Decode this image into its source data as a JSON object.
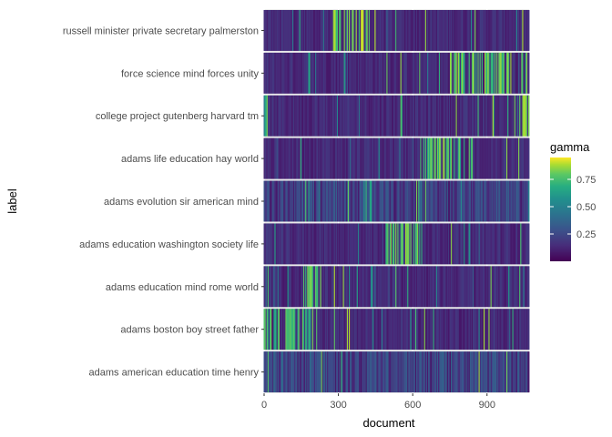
{
  "chart_data": {
    "type": "heatmap",
    "xlabel": "document",
    "ylabel": "label",
    "xlim": [
      0,
      1070
    ],
    "x_ticks": [
      "0",
      "300",
      "600",
      "900"
    ],
    "x_tick_values": [
      0,
      300,
      600,
      900
    ],
    "y_categories": [
      "russell minister private secretary palmerston",
      "force science mind forces unity",
      "college project gutenberg harvard tm",
      "adams life education hay world",
      "adams evolution sir american mind",
      "adams education washington society life",
      "adams education mind rome world",
      "adams boston boy street father",
      "adams american education time henry"
    ],
    "n_documents": 1070,
    "grid": true,
    "background": "#ebebeb",
    "colorscale": "viridis",
    "legend": {
      "title": "gamma",
      "position": "right",
      "ticks": [
        "0.75",
        "0.50",
        "0.25"
      ],
      "tick_values": [
        0.75,
        0.5,
        0.25
      ],
      "range": [
        0.0,
        0.95
      ]
    },
    "hot_ranges": [
      {
        "row": 0,
        "from": 280,
        "to": 440,
        "level": 0.95
      },
      {
        "row": 1,
        "from": 740,
        "to": 1000,
        "level": 0.9
      },
      {
        "row": 2,
        "from": 0,
        "to": 15,
        "level": 0.8
      },
      {
        "row": 2,
        "from": 1010,
        "to": 1070,
        "level": 0.95
      },
      {
        "row": 3,
        "from": 630,
        "to": 860,
        "level": 0.8
      },
      {
        "row": 4,
        "from": 0,
        "to": 1070,
        "level": 0.3
      },
      {
        "row": 5,
        "from": 490,
        "to": 640,
        "level": 0.85
      },
      {
        "row": 6,
        "from": 160,
        "to": 230,
        "level": 0.85
      },
      {
        "row": 7,
        "from": 0,
        "to": 200,
        "level": 0.8
      },
      {
        "row": 8,
        "from": 0,
        "to": 1070,
        "level": 0.3
      }
    ]
  }
}
